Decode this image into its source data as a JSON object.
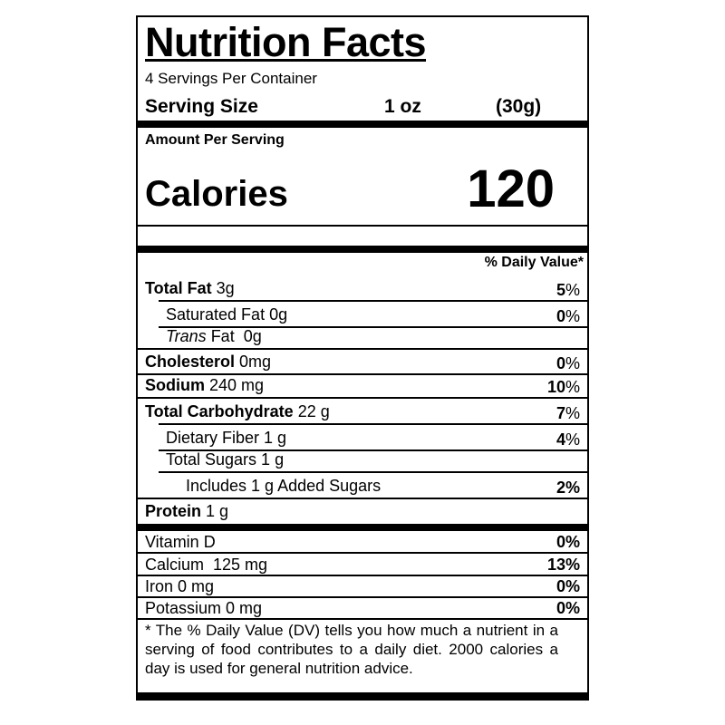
{
  "title": "Nutrition Facts",
  "servings_per_container": "4  Servings Per Container",
  "serving_size": {
    "label": "Serving Size",
    "amount": "1 oz",
    "grams": "(30g)"
  },
  "amount_per_serving": "Amount Per Serving",
  "calories": {
    "label": "Calories",
    "value": "120"
  },
  "daily_value_header": "% Daily Value*",
  "nutrients": [
    {
      "name": "Total Fat",
      "amount": " 3g",
      "dv_num": "5",
      "dv_pct": "%",
      "bold_name": true,
      "indent": 0
    },
    {
      "name": "Saturated Fat 0g",
      "amount": "",
      "dv_num": "0",
      "dv_pct": "%",
      "bold_name": false,
      "indent": 1
    },
    {
      "name": "Trans",
      "amount": " Fat  0g",
      "dv_num": "",
      "dv_pct": "",
      "bold_name": false,
      "italic_name": true,
      "indent": 1
    },
    {
      "name": "Cholesterol",
      "amount": " 0mg",
      "dv_num": "0",
      "dv_pct": "%",
      "bold_name": true,
      "indent": 0
    },
    {
      "name": "Sodium",
      "amount": " 240 mg",
      "dv_num": "10",
      "dv_pct": "%",
      "bold_name": true,
      "indent": 0
    },
    {
      "name": "Total Carbohydrate",
      "amount": " 22 g",
      "dv_num": "7",
      "dv_pct": "%",
      "bold_name": true,
      "indent": 0
    },
    {
      "name": "Dietary Fiber 1 g",
      "amount": "",
      "dv_num": "4",
      "dv_pct": "%",
      "bold_name": false,
      "indent": 1
    },
    {
      "name": "Total Sugars 1 g",
      "amount": "",
      "dv_num": "",
      "dv_pct": "",
      "bold_name": false,
      "indent": 1
    },
    {
      "name": "Includes 1 g Added Sugars",
      "amount": "",
      "dv_num": "2%",
      "dv_pct": "",
      "bold_name": false,
      "indent": 2
    },
    {
      "name": "Protein",
      "amount": " 1 g",
      "dv_num": "",
      "dv_pct": "",
      "bold_name": true,
      "indent": 0
    }
  ],
  "vitamins": [
    {
      "name": "Vitamin D",
      "dv": "0%"
    },
    {
      "name": "Calcium  125 mg",
      "dv": "13%"
    },
    {
      "name": "Iron 0 mg",
      "dv": "0%"
    },
    {
      "name": "Potassium 0 mg",
      "dv": "0%"
    }
  ],
  "footnote": "* The % Daily Value (DV) tells you how much a nutrient in a serving of food contributes to a daily diet. 2000 calories a day is used for general nutrition advice."
}
